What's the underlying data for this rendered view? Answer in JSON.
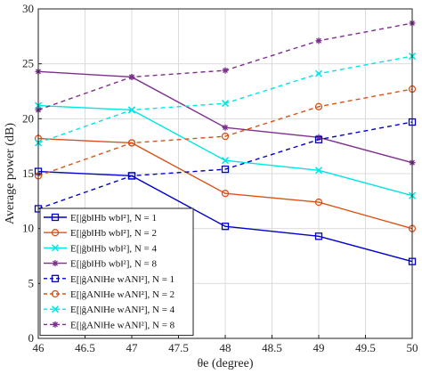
{
  "chart_data": {
    "type": "line",
    "xlabel": "θe (degree)",
    "ylabel": "Average power (dB)",
    "xlim": [
      46,
      50
    ],
    "ylim": [
      0,
      30
    ],
    "xticks": [
      46,
      46.5,
      47,
      47.5,
      48,
      48.5,
      49,
      49.5,
      50
    ],
    "xtick_labels": [
      "46",
      "46.5",
      "47",
      "47.5",
      "48",
      "48.5",
      "49",
      "49.5",
      "50"
    ],
    "yticks": [
      0,
      5,
      10,
      15,
      20,
      25,
      30
    ],
    "ytick_labels": [
      "0",
      "5",
      "10",
      "15",
      "20",
      "25",
      "30"
    ],
    "grid": true,
    "legend_position": "bottom-left",
    "x": [
      46,
      47,
      48,
      49,
      50
    ],
    "series": [
      {
        "name": "E[|ĝb‖Hb wb‖²], N = 1",
        "values": [
          15.2,
          14.8,
          10.2,
          9.3,
          7.0
        ],
        "color": "#0000cc",
        "dash": "solid",
        "marker": "square"
      },
      {
        "name": "E[|ĝb‖Hb wb‖²], N = 2",
        "values": [
          18.2,
          17.8,
          13.2,
          12.4,
          10.0
        ],
        "color": "#d95319",
        "dash": "solid",
        "marker": "circle"
      },
      {
        "name": "E[|ĝb‖Hb wb‖²], N = 4",
        "values": [
          21.2,
          20.8,
          16.2,
          15.3,
          13.0
        ],
        "color": "#00e5e5",
        "dash": "solid",
        "marker": "x"
      },
      {
        "name": "E[|ĝb‖Hb wb‖²], N = 8",
        "values": [
          24.3,
          23.8,
          19.2,
          18.3,
          16.0
        ],
        "color": "#7e2f8e",
        "dash": "solid",
        "marker": "star"
      },
      {
        "name": "E[|ĝAN‖He wAN‖²], N = 1",
        "values": [
          11.8,
          14.8,
          15.4,
          18.1,
          19.7
        ],
        "color": "#0000cc",
        "dash": "dashed",
        "marker": "square"
      },
      {
        "name": "E[|ĝAN‖He wAN‖²], N = 2",
        "values": [
          14.8,
          17.8,
          18.4,
          21.1,
          22.7
        ],
        "color": "#d95319",
        "dash": "dashed",
        "marker": "circle"
      },
      {
        "name": "E[|ĝAN‖He wAN‖²], N = 4",
        "values": [
          17.8,
          20.8,
          21.4,
          24.1,
          25.7
        ],
        "color": "#00e5e5",
        "dash": "dashed",
        "marker": "x"
      },
      {
        "name": "E[|ĝAN‖He wAN‖²], N = 8",
        "values": [
          20.8,
          23.8,
          24.4,
          27.1,
          28.7
        ],
        "color": "#7e2f8e",
        "dash": "dashed",
        "marker": "star"
      }
    ]
  }
}
